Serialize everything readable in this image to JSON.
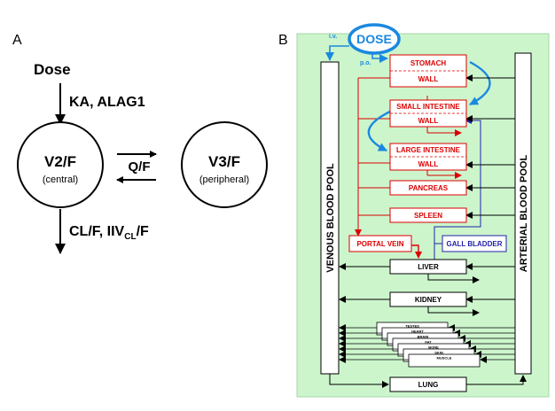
{
  "panelA": {
    "label": "A",
    "dose": "Dose",
    "absorption": "KA, ALAG1",
    "central_name": "V2/F",
    "central_sub": "(central)",
    "peripheral_name": "V3/F",
    "peripheral_sub": "(peripheral)",
    "intercompartmental": "Q/F",
    "elimination_pre": "CL/F, IIV",
    "elimination_sub": "CL",
    "elimination_post": "/F"
  },
  "panelB": {
    "label": "B",
    "dose": "DOSE",
    "iv": "i.v.",
    "po": "p.o.",
    "venous_pool": "VENOUS  BLOOD  POOL",
    "arterial_pool": "ARTERIAL  BLOOD  POOL",
    "stomach": "STOMACH",
    "stomach_wall": "WALL",
    "small_intestine": "SMALL INTESTINE",
    "small_intestine_wall": "WALL",
    "large_intestine": "LARGE INTESTINE",
    "large_intestine_wall": "WALL",
    "pancreas": "PANCREAS",
    "spleen": "SPLEEN",
    "portal_vein": "PORTAL VEIN",
    "gall_bladder": "GALL BLADDER",
    "liver": "LIVER",
    "kidney": "KIDNEY",
    "lung": "LUNG",
    "stacked_tissues": [
      "TESTES",
      "HEART",
      "BRAIN",
      "FAT",
      "BONE",
      "SKIN",
      "MUSCLE"
    ]
  },
  "colors": {
    "background_green": "#ccf5cc",
    "red": "#dd0000",
    "blue": "#1a88e0",
    "dark_blue": "#2222aa",
    "black": "#000000"
  }
}
